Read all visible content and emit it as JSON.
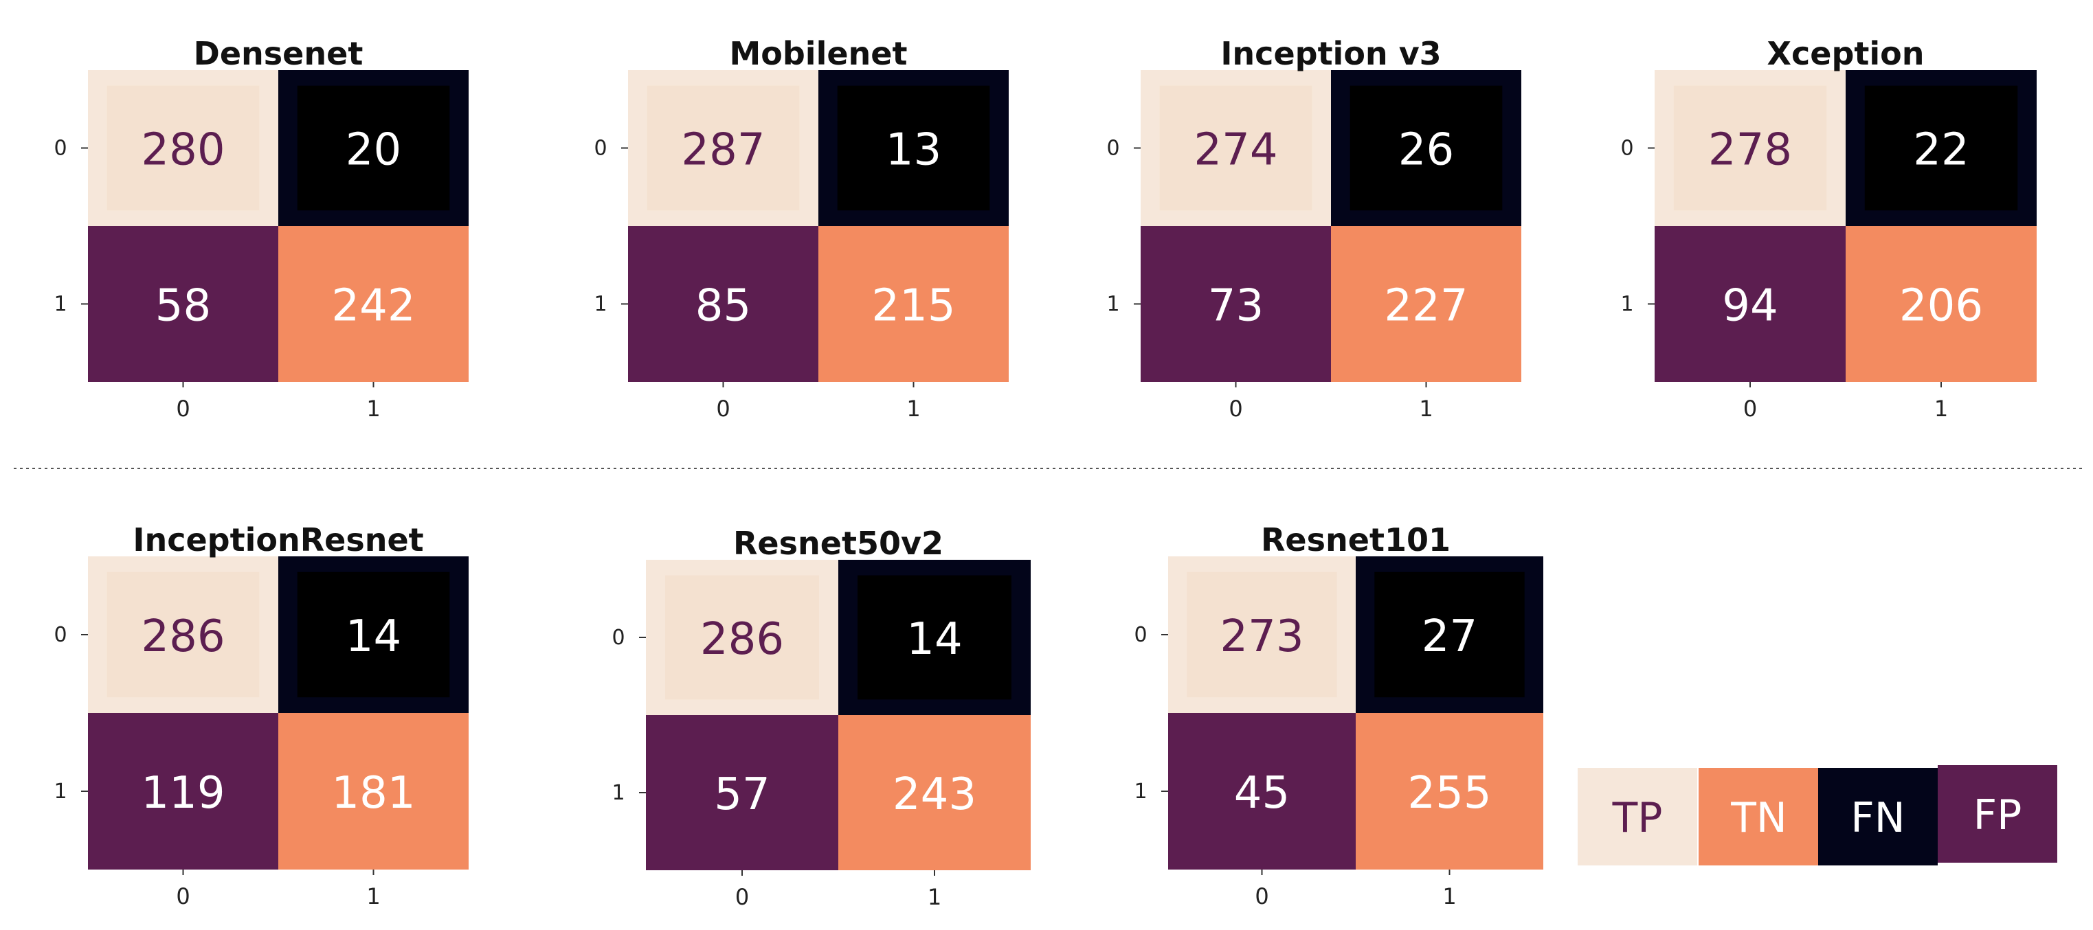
{
  "colors": {
    "TP": "#f6e7da",
    "TP_inner": "#f4e1d0",
    "TN": "#f38b60",
    "FN": "#03051a",
    "FN_inner": "#000000",
    "FP": "#5c1e50",
    "light_text": "#ffffff",
    "dark_text": "#5c1e50"
  },
  "legend": {
    "items": [
      {
        "key": "TP",
        "label": "TP"
      },
      {
        "key": "TN",
        "label": "TN"
      },
      {
        "key": "FN",
        "label": "FN"
      },
      {
        "key": "FP",
        "label": "FP"
      }
    ]
  },
  "chart_data": [
    {
      "type": "heatmap",
      "title": "Densenet",
      "xticks": [
        "0",
        "1"
      ],
      "yticks": [
        "0",
        "1"
      ],
      "matrix": [
        [
          280,
          20
        ],
        [
          58,
          242
        ]
      ]
    },
    {
      "type": "heatmap",
      "title": "Mobilenet",
      "xticks": [
        "0",
        "1"
      ],
      "yticks": [
        "0",
        "1"
      ],
      "matrix": [
        [
          287,
          13
        ],
        [
          85,
          215
        ]
      ]
    },
    {
      "type": "heatmap",
      "title": "Inception v3",
      "xticks": [
        "0",
        "1"
      ],
      "yticks": [
        "0",
        "1"
      ],
      "matrix": [
        [
          274,
          26
        ],
        [
          73,
          227
        ]
      ]
    },
    {
      "type": "heatmap",
      "title": "Xception",
      "xticks": [
        "0",
        "1"
      ],
      "yticks": [
        "0",
        "1"
      ],
      "matrix": [
        [
          278,
          22
        ],
        [
          94,
          206
        ]
      ]
    },
    {
      "type": "heatmap",
      "title": "InceptionResnet",
      "xticks": [
        "0",
        "1"
      ],
      "yticks": [
        "0",
        "1"
      ],
      "matrix": [
        [
          286,
          14
        ],
        [
          119,
          181
        ]
      ]
    },
    {
      "type": "heatmap",
      "title": "Resnet50v2",
      "xticks": [
        "0",
        "1"
      ],
      "yticks": [
        "0",
        "1"
      ],
      "matrix": [
        [
          286,
          14
        ],
        [
          57,
          243
        ]
      ]
    },
    {
      "type": "heatmap",
      "title": "Resnet101",
      "xticks": [
        "0",
        "1"
      ],
      "yticks": [
        "0",
        "1"
      ],
      "matrix": [
        [
          273,
          27
        ],
        [
          45,
          255
        ]
      ]
    }
  ]
}
